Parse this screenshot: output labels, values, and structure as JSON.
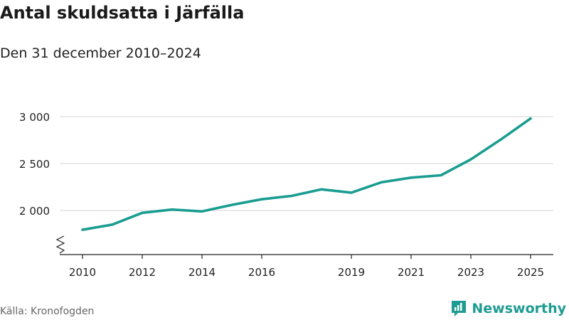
{
  "header": {
    "title": "Antal skuldsatta i Järfälla",
    "subtitle": "Den 31 december 2010–2024"
  },
  "footer": {
    "source": "Källa: Kronofogden",
    "brand": "Newsworthy",
    "brand_icon": "newsworthy-logo-icon"
  },
  "colors": {
    "line": "#1a9d90",
    "grid": "#dddddd",
    "axis": "#222222",
    "brand": "#1e9c91"
  },
  "chart_data": {
    "type": "line",
    "title": "Antal skuldsatta i Järfälla",
    "subtitle": "Den 31 december 2010–2024",
    "xlabel": "",
    "ylabel": "",
    "x": [
      2010,
      2011,
      2012,
      2013,
      2014,
      2015,
      2016,
      2017,
      2018,
      2019,
      2020,
      2021,
      2022,
      2023,
      2024,
      2025
    ],
    "values": [
      1795,
      1850,
      1975,
      2010,
      1990,
      2060,
      2120,
      2155,
      2225,
      2190,
      2300,
      2350,
      2375,
      2545,
      2755,
      2980
    ],
    "xticks": [
      2010,
      2012,
      2014,
      2016,
      2019,
      2021,
      2023,
      2025
    ],
    "xtick_labels": [
      "2010",
      "2012",
      "2014",
      "2016",
      "2019",
      "2021",
      "2023",
      "2025"
    ],
    "yticks": [
      2000,
      2500,
      3000
    ],
    "ytick_labels": [
      "2 000",
      "2 500",
      "3 000"
    ],
    "ylim": [
      1550,
      3000
    ],
    "xlim": [
      2010,
      2025
    ],
    "grid": true,
    "axis_break": true
  }
}
